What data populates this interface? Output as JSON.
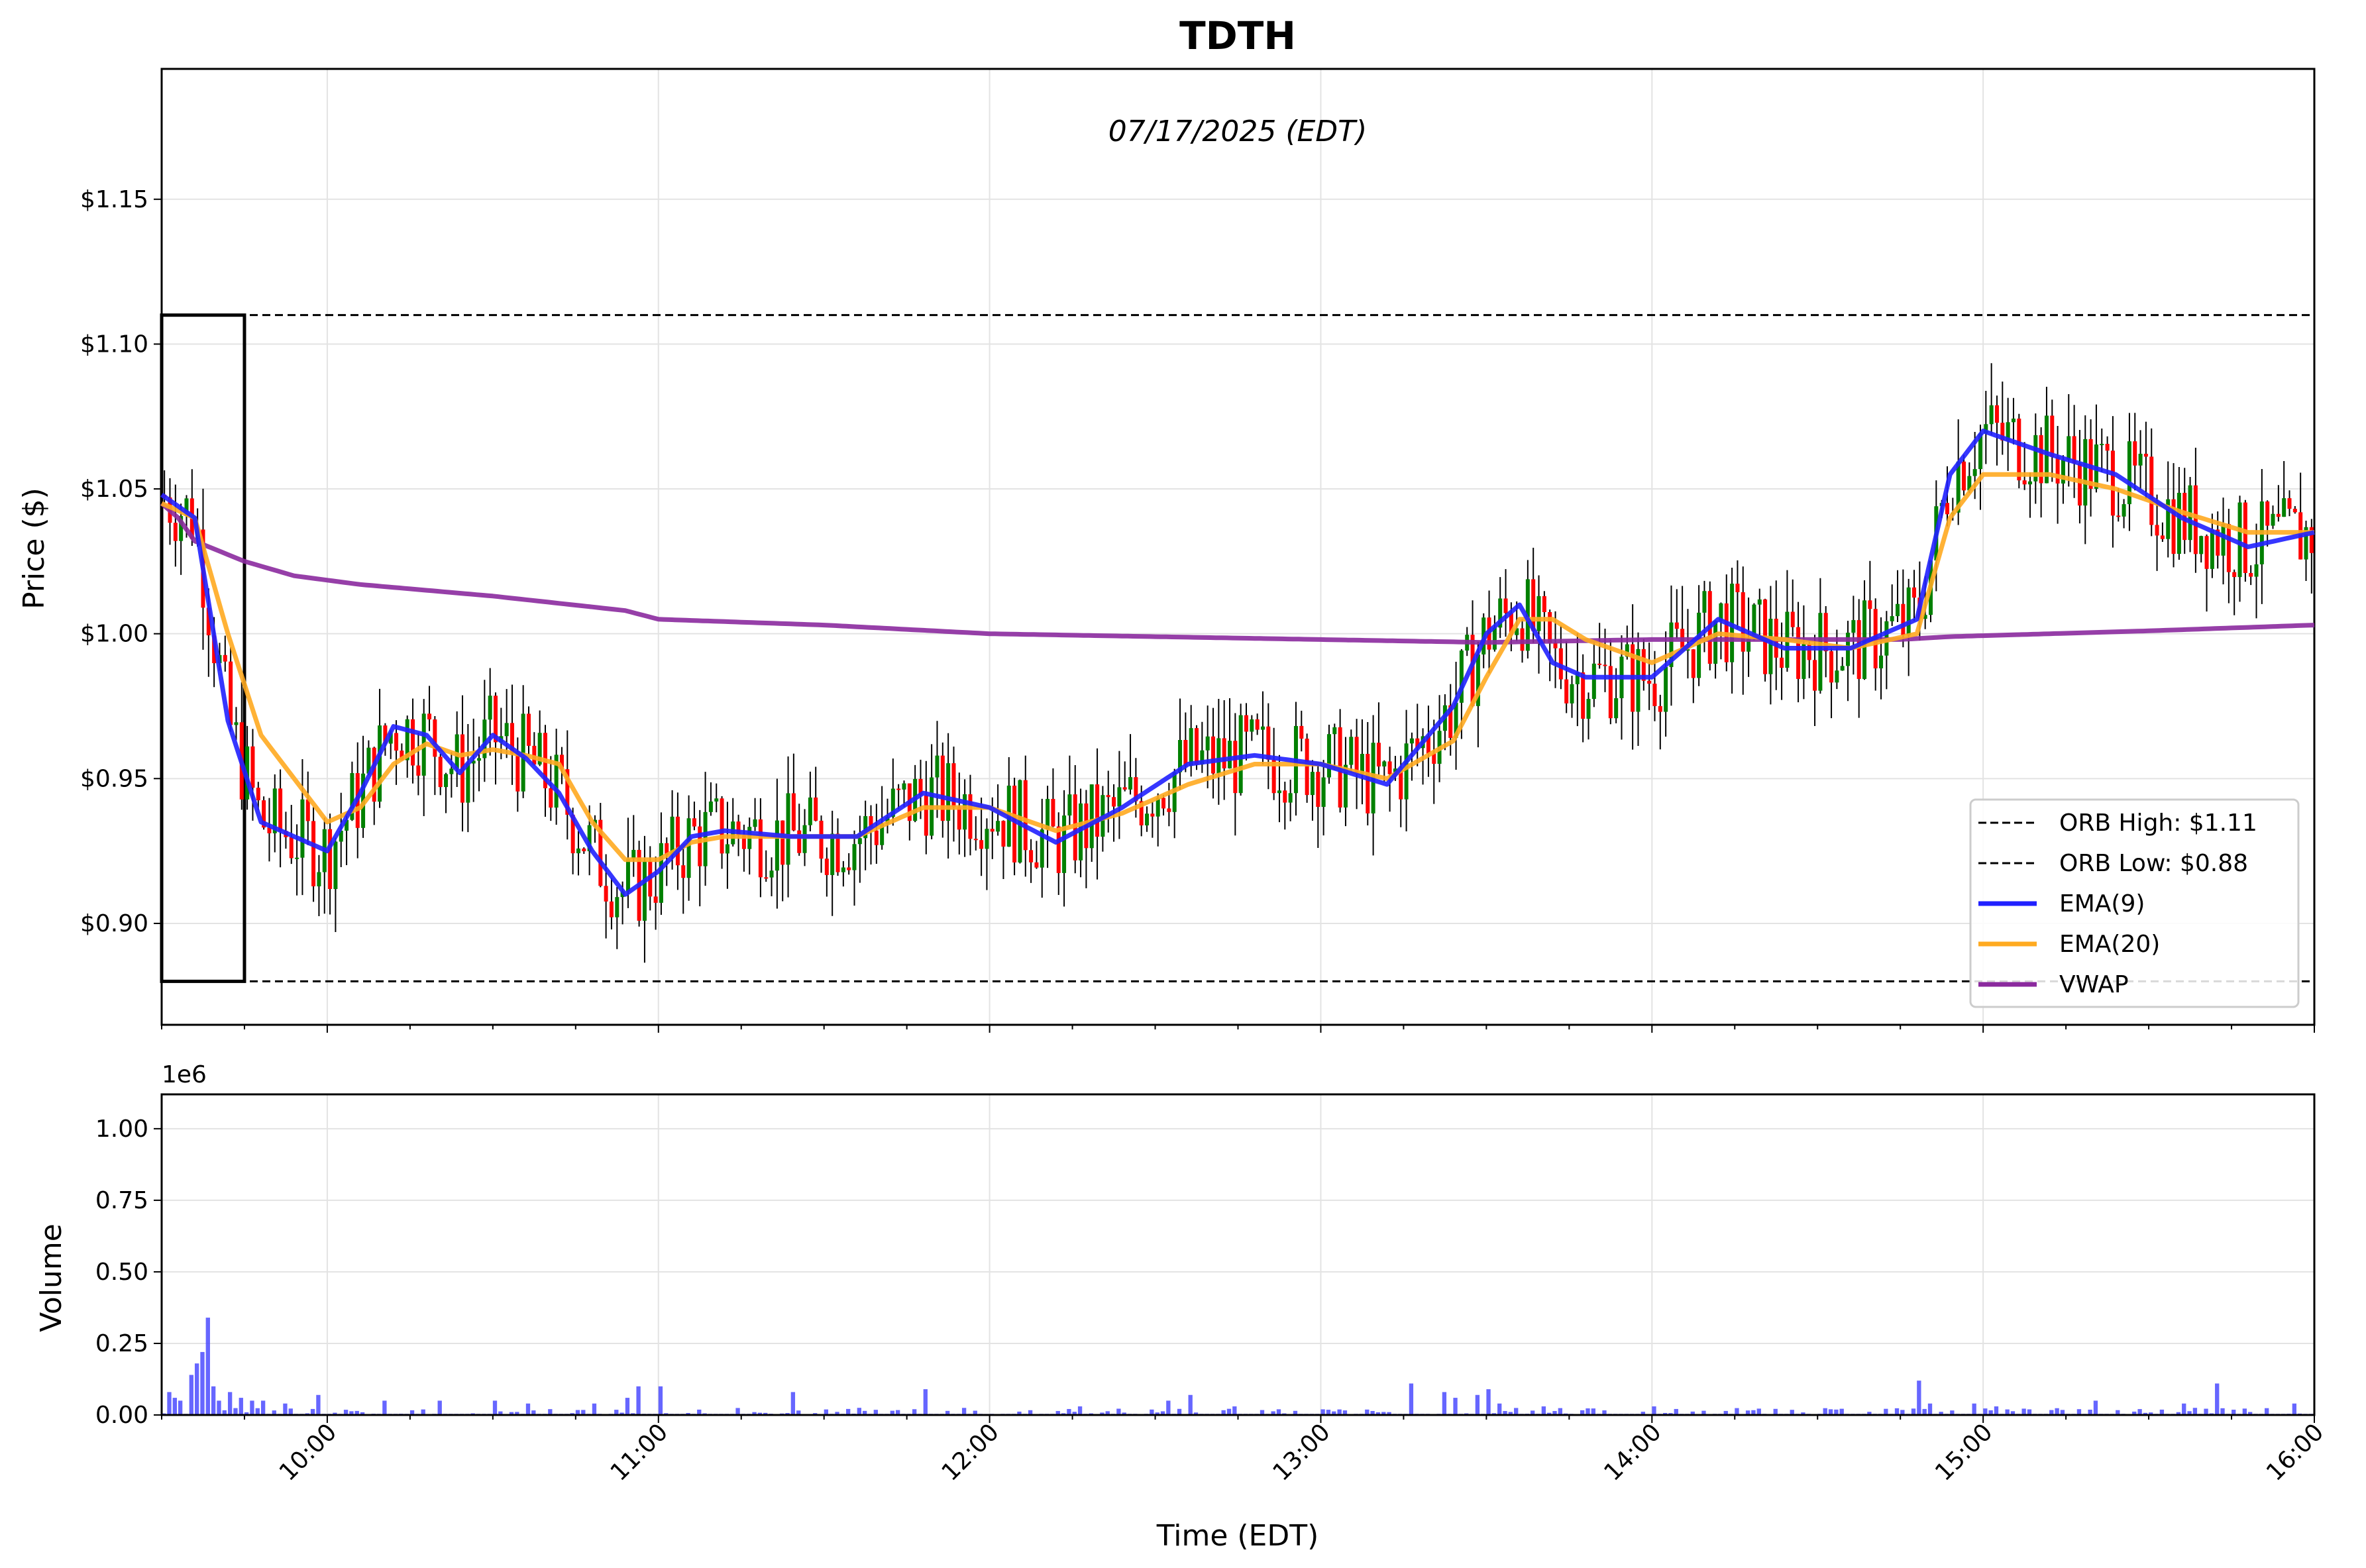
{
  "chart_data": [
    {
      "type": "candlestick",
      "title": "TDTH",
      "subtitle": "07/17/2025 (EDT)",
      "xlabel": "",
      "ylabel": "Price ($)",
      "xlim": [
        "09:30",
        "16:00"
      ],
      "ylim": [
        0.865,
        1.195
      ],
      "yticks": [
        "$0.90",
        "$0.95",
        "$1.00",
        "$1.05",
        "$1.10",
        "$1.15"
      ],
      "ytick_values": [
        0.9,
        0.95,
        1.0,
        1.05,
        1.1,
        1.15
      ],
      "grid": true,
      "legend_position": "lower right",
      "colors": {
        "up_candle": "#008000",
        "down_candle": "#ff0000",
        "wick": "#000000",
        "ema9": "#2020ff",
        "ema20": "#ffaa20",
        "vwap": "#8b2a9e",
        "orb_box": "#000000"
      },
      "orb_box": {
        "start": "09:30",
        "end": "09:45",
        "high": 1.11,
        "low": 0.88
      },
      "legend": [
        {
          "label": "ORB High: $1.11",
          "style": "dashed",
          "color": "#000000"
        },
        {
          "label": "ORB Low: $0.88",
          "style": "dashed",
          "color": "#000000"
        },
        {
          "label": "EMA(9)",
          "style": "solid",
          "color": "#2020ff"
        },
        {
          "label": "EMA(20)",
          "style": "solid",
          "color": "#ffaa20"
        },
        {
          "label": "VWAP",
          "style": "solid",
          "color": "#8b2a9e"
        }
      ],
      "series": [
        {
          "name": "ORB High: $1.11",
          "value": 1.11
        },
        {
          "name": "ORB Low: $0.88",
          "value": 0.88
        },
        {
          "name": "EMA(9)",
          "x": [
            "09:30",
            "09:36",
            "09:42",
            "09:48",
            "09:54",
            "10:00",
            "10:06",
            "10:12",
            "10:18",
            "10:24",
            "10:30",
            "10:36",
            "10:42",
            "10:48",
            "10:54",
            "11:00",
            "11:06",
            "11:12",
            "11:24",
            "11:36",
            "11:48",
            "12:00",
            "12:12",
            "12:24",
            "12:36",
            "12:48",
            "13:00",
            "13:12",
            "13:24",
            "13:30",
            "13:36",
            "13:42",
            "13:48",
            "14:00",
            "14:12",
            "14:24",
            "14:36",
            "14:48",
            "14:54",
            "15:00",
            "15:12",
            "15:24",
            "15:36",
            "15:48",
            "16:00"
          ],
          "values": [
            1.048,
            1.04,
            0.97,
            0.935,
            0.93,
            0.925,
            0.945,
            0.968,
            0.965,
            0.952,
            0.965,
            0.957,
            0.945,
            0.925,
            0.91,
            0.918,
            0.93,
            0.932,
            0.93,
            0.93,
            0.945,
            0.94,
            0.928,
            0.94,
            0.955,
            0.958,
            0.955,
            0.948,
            0.975,
            1.0,
            1.01,
            0.99,
            0.985,
            0.985,
            1.005,
            0.995,
            0.995,
            1.005,
            1.055,
            1.07,
            1.062,
            1.055,
            1.04,
            1.03,
            1.035
          ]
        },
        {
          "name": "EMA(20)",
          "x": [
            "09:30",
            "09:36",
            "09:42",
            "09:48",
            "09:54",
            "10:00",
            "10:06",
            "10:12",
            "10:18",
            "10:24",
            "10:30",
            "10:36",
            "10:42",
            "10:48",
            "10:54",
            "11:00",
            "11:06",
            "11:12",
            "11:24",
            "11:36",
            "11:48",
            "12:00",
            "12:12",
            "12:24",
            "12:36",
            "12:48",
            "13:00",
            "13:12",
            "13:24",
            "13:30",
            "13:36",
            "13:42",
            "13:48",
            "14:00",
            "14:12",
            "14:24",
            "14:36",
            "14:48",
            "14:54",
            "15:00",
            "15:12",
            "15:24",
            "15:36",
            "15:48",
            "16:00"
          ],
          "values": [
            1.045,
            1.04,
            1.0,
            0.965,
            0.95,
            0.935,
            0.94,
            0.955,
            0.962,
            0.958,
            0.96,
            0.958,
            0.955,
            0.935,
            0.922,
            0.922,
            0.928,
            0.93,
            0.93,
            0.93,
            0.94,
            0.94,
            0.932,
            0.938,
            0.948,
            0.955,
            0.955,
            0.95,
            0.963,
            0.985,
            1.005,
            1.005,
            0.998,
            0.99,
            1.0,
            0.998,
            0.995,
            1.0,
            1.04,
            1.055,
            1.055,
            1.05,
            1.042,
            1.035,
            1.035
          ]
        },
        {
          "name": "VWAP",
          "x": [
            "09:30",
            "09:33",
            "09:36",
            "09:45",
            "09:54",
            "10:06",
            "10:30",
            "10:54",
            "11:00",
            "11:30",
            "12:00",
            "12:30",
            "13:00",
            "13:30",
            "14:00",
            "14:30",
            "14:45",
            "14:54",
            "15:30",
            "16:00"
          ],
          "values": [
            1.045,
            1.04,
            1.032,
            1.025,
            1.02,
            1.017,
            1.013,
            1.008,
            1.005,
            1.003,
            1.0,
            0.999,
            0.998,
            0.997,
            0.998,
            0.998,
            0.998,
            0.999,
            1.001,
            1.003
          ]
        }
      ]
    },
    {
      "type": "bar",
      "title": "",
      "xlabel": "Time (EDT)",
      "ylabel": "Volume",
      "offset_label": "1e6",
      "ylim": [
        0,
        1.12
      ],
      "yticks": [
        "0.00",
        "0.25",
        "0.50",
        "0.75",
        "1.00"
      ],
      "ytick_values": [
        0,
        0.25,
        0.5,
        0.75,
        1.0
      ],
      "xticks": [
        "10:00",
        "11:00",
        "12:00",
        "13:00",
        "14:00",
        "15:00",
        "16:00"
      ],
      "grid": true,
      "color": "#4b4bff",
      "series": [
        {
          "name": "",
          "x": [
            "09:31",
            "09:32",
            "09:33",
            "09:35",
            "09:36",
            "09:37",
            "09:38",
            "09:39",
            "09:40",
            "09:42",
            "09:44",
            "09:46",
            "09:48",
            "09:52",
            "09:58",
            "10:10",
            "10:20",
            "10:30",
            "10:36",
            "10:48",
            "10:54",
            "10:56",
            "11:00",
            "11:24",
            "11:48",
            "12:16",
            "12:32",
            "12:36",
            "12:44",
            "13:16",
            "13:22",
            "13:24",
            "13:28",
            "13:30",
            "13:32",
            "13:40",
            "14:00",
            "14:48",
            "14:50",
            "14:58",
            "15:02",
            "15:20",
            "15:36",
            "15:42",
            "15:56",
            "16:00"
          ],
          "values": [
            0.08,
            0.06,
            0.05,
            0.14,
            0.18,
            0.22,
            0.34,
            0.1,
            0.05,
            0.08,
            0.06,
            0.05,
            0.05,
            0.04,
            0.07,
            0.05,
            0.05,
            0.05,
            0.04,
            0.04,
            0.06,
            0.1,
            0.1,
            0.08,
            0.09,
            0.03,
            0.05,
            0.07,
            0.03,
            0.11,
            0.08,
            0.06,
            0.07,
            0.09,
            0.04,
            0.03,
            0.03,
            0.12,
            0.04,
            0.04,
            0.03,
            0.05,
            0.04,
            0.11,
            0.04,
            0.04
          ]
        }
      ]
    }
  ]
}
